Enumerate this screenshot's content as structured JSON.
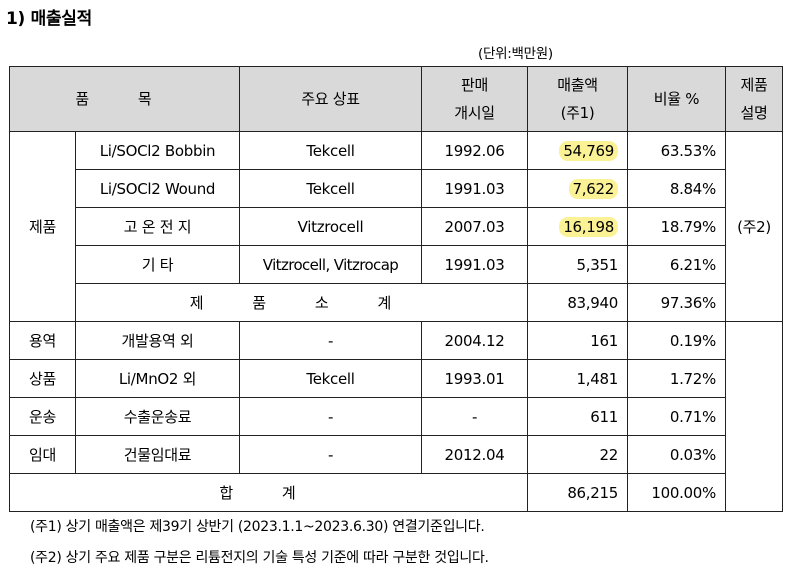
{
  "title": "1) 매출실적",
  "unit": "(단위:백만원)",
  "header": {
    "item": "품 목",
    "brand": "주요 상표",
    "launch_line1": "판매",
    "launch_line2": "개시일",
    "sales_line1": "매출액",
    "sales_line2": "(주1)",
    "ratio": "비율 %",
    "desc_line1": "제품",
    "desc_line2": "설명"
  },
  "groups": {
    "product": "제품",
    "service": "용역",
    "goods": "상품",
    "transport": "운송",
    "lease": "임대"
  },
  "desc_note": "(주2)",
  "rows": [
    {
      "item": "Li/SOCl2 Bobbin",
      "brand": "Tekcell",
      "date": "1992.06",
      "sales": "54,769",
      "ratio": "63.53%",
      "highlight": true
    },
    {
      "item": "Li/SOCl2 Wound",
      "brand": "Tekcell",
      "date": "1991.03",
      "sales": "7,622",
      "ratio": "8.84%",
      "highlight": true
    },
    {
      "item": "고 온 전 지",
      "brand": "Vitzrocell",
      "date": "2007.03",
      "sales": "16,198",
      "ratio": "18.79%",
      "highlight": true
    },
    {
      "item": "기 타",
      "brand": "Vitzrocell, Vitzrocap",
      "date": "1991.03",
      "sales": "5,351",
      "ratio": "6.21%",
      "highlight": false
    }
  ],
  "subtotal": {
    "label": "제 품 소 계",
    "sales": "83,940",
    "ratio": "97.36%"
  },
  "other_rows": [
    {
      "item": "개발용역 외",
      "brand": "-",
      "date": "2004.12",
      "sales": "161",
      "ratio": "0.19%"
    },
    {
      "item": "Li/MnO2 외",
      "brand": "Tekcell",
      "date": "1993.01",
      "sales": "1,481",
      "ratio": "1.72%"
    },
    {
      "item": "수출운송료",
      "brand": "-",
      "date": "-",
      "sales": "611",
      "ratio": "0.71%"
    },
    {
      "item": "건물임대료",
      "brand": "-",
      "date": "2012.04",
      "sales": "22",
      "ratio": "0.03%"
    }
  ],
  "total": {
    "label": "합 계",
    "sales": "86,215",
    "ratio": "100.00%"
  },
  "notes": [
    "(주1) 상기 매출액은 제39기 상반기 (2023.1.1~2023.6.30) 연결기준입니다.",
    "(주2) 상기 주요 제품 구분은 리튬전지의 기술 특성 기준에 따라 구분한 것입니다."
  ],
  "colors": {
    "header_bg": "#d9d9d9",
    "highlight": "#fbf195",
    "border": "#222222"
  }
}
